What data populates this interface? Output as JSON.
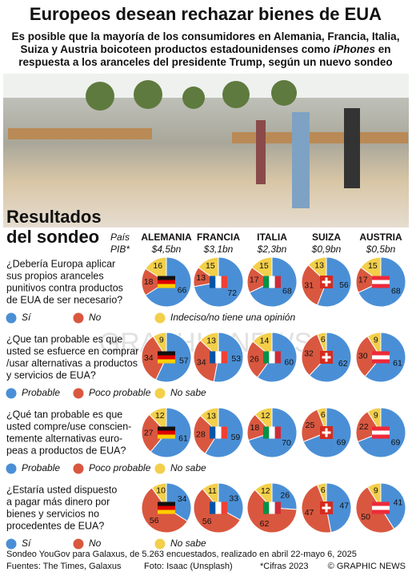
{
  "header": {
    "title": "Europeos desean rechazar bienes de EUA",
    "subtitle_lines": [
      [
        {
          "text": "Es posible que la mayoría de los consumidores en Alemania, Francia, Italia,",
          "italic": false
        }
      ],
      [
        {
          "text": "Suiza y Austria boicoteen productos estadounidenses como ",
          "italic": false
        },
        {
          "text": "iPhones",
          "italic": true
        },
        {
          "text": " en",
          "italic": false
        }
      ],
      [
        {
          "text": "respuesta a los aranceles del presidente Trump, según un nuevo sondeo",
          "italic": false
        }
      ]
    ]
  },
  "section_title": [
    "Resultados",
    "del sondeo"
  ],
  "country_header": {
    "label": "País",
    "gdp_label": "PIB*"
  },
  "countries": [
    {
      "name": "ALEMANIA",
      "gdp": "$4,5bn"
    },
    {
      "name": "FRANCIA",
      "gdp": "$3,1bn"
    },
    {
      "name": "ITALIA",
      "gdp": "$2,3bn"
    },
    {
      "name": "SUIZA",
      "gdp": "$0,9bn"
    },
    {
      "name": "AUSTRIA",
      "gdp": "$0,5bn"
    }
  ],
  "questions": [
    {
      "lines": [
        "¿Debería Europa aplicar",
        "sus propios aranceles",
        "punitivos contra productos",
        "de EUA de ser necesario?"
      ],
      "legend": [
        {
          "name": "Sí",
          "color": "#4a8fd6"
        },
        {
          "name": "No",
          "color": "#d9573f"
        },
        {
          "name": "Indeciso/no tiene una opinión",
          "color": "#f3cf4a"
        }
      ],
      "values": [
        [
          66,
          18,
          16
        ],
        [
          72,
          13,
          15
        ],
        [
          68,
          17,
          15
        ],
        [
          56,
          31,
          13
        ],
        [
          68,
          17,
          15
        ]
      ]
    },
    {
      "lines": [
        "¿Que tan probable es que",
        "usted se esfuerce en comprar",
        "/usar alternativas a productos",
        "y servicios de EUA?"
      ],
      "legend": [
        {
          "name": "Probable",
          "color": "#4a8fd6"
        },
        {
          "name": "Poco probable",
          "color": "#d9573f"
        },
        {
          "name": "No sabe",
          "color": "#f3cf4a"
        }
      ],
      "values": [
        [
          57,
          34,
          9
        ],
        [
          53,
          34,
          13
        ],
        [
          60,
          26,
          14
        ],
        [
          62,
          32,
          6
        ],
        [
          61,
          30,
          9
        ]
      ]
    },
    {
      "lines": [
        "¿Qué tan probable es que",
        "usted compre/use conscien-",
        "temente alternativas euro-",
        "peas a productos de EUA?"
      ],
      "legend": [
        {
          "name": "Probable",
          "color": "#4a8fd6"
        },
        {
          "name": "Poco probable",
          "color": "#d9573f"
        },
        {
          "name": "No sabe",
          "color": "#f3cf4a"
        }
      ],
      "values": [
        [
          61,
          27,
          12
        ],
        [
          59,
          28,
          13
        ],
        [
          70,
          18,
          12
        ],
        [
          69,
          25,
          6
        ],
        [
          69,
          22,
          9
        ]
      ]
    },
    {
      "lines": [
        "¿Estaría usted dispuesto",
        "a pagar más dinero por",
        "bienes y servicios no",
        "procedentes de EUA?"
      ],
      "legend": [
        {
          "name": "Sí",
          "color": "#4a8fd6"
        },
        {
          "name": "No",
          "color": "#d9573f"
        },
        {
          "name": "No sabe",
          "color": "#f3cf4a"
        }
      ],
      "values": [
        [
          34,
          56,
          10
        ],
        [
          33,
          56,
          11
        ],
        [
          26,
          62,
          12
        ],
        [
          47,
          47,
          6
        ],
        [
          41,
          50,
          9
        ]
      ]
    }
  ],
  "watermark": "GRAPHIC NEWS",
  "footer": {
    "note": "Sondeo YouGov para Galaxus, de 5.263 encuestados, realizado en abril 22-mayo 6, 2025",
    "sources": "Fuentes: The Times, Galaxus",
    "photo": "Foto: Isaac (Unsplash)",
    "figures": "*Cifras 2023",
    "credit": "© GRAPHIC NEWS"
  }
}
